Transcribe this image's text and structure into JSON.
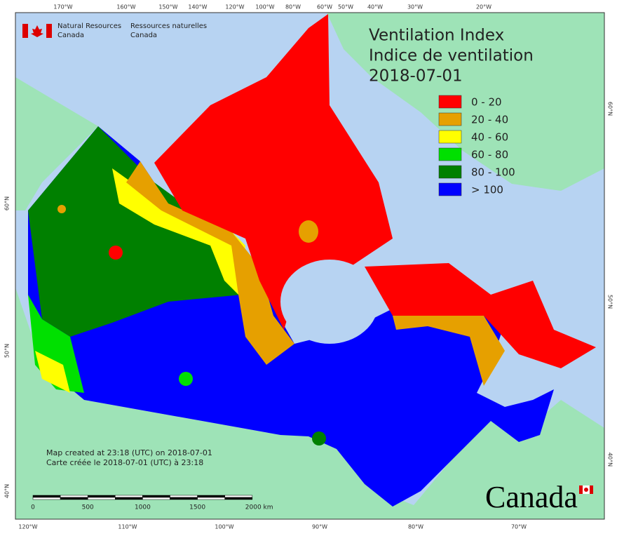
{
  "header": {
    "en": [
      "Natural Resources",
      "Canada"
    ],
    "fr": [
      "Ressources naturelles",
      "Canada"
    ]
  },
  "title": [
    "Ventilation Index",
    "Indice de ventilation",
    "2018-07-01"
  ],
  "legend": [
    {
      "label": "0 - 20",
      "color": "#ff0000"
    },
    {
      "label": "20 - 40",
      "color": "#e6a000"
    },
    {
      "label": "40 - 60",
      "color": "#ffff00"
    },
    {
      "label": "60 - 80",
      "color": "#00e000"
    },
    {
      "label": "80 - 100",
      "color": "#008000"
    },
    {
      "label": "> 100",
      "color": "#0000ff"
    }
  ],
  "graticule": {
    "top": [
      "170°W",
      "160°W",
      "150°W",
      "140°W",
      "120°W",
      "100°W",
      "80°W",
      "60°W",
      "50°W",
      "40°W",
      "30°W",
      "20°W"
    ],
    "bottom": [
      "120°W",
      "110°W",
      "100°W",
      "90°W",
      "80°W",
      "70°W"
    ],
    "left": [
      "60°N",
      "50°N",
      "40°N"
    ],
    "right": [
      "60°N",
      "50°N",
      "40°N"
    ]
  },
  "credits": [
    "Map created at 23:18 (UTC) on 2018-07-01",
    "Carte créée le 2018-07-01 (UTC) à 23:18"
  ],
  "scale_bar": [
    "0",
    "500",
    "1000",
    "1500",
    "2000 km"
  ],
  "wordmark": "Canada"
}
